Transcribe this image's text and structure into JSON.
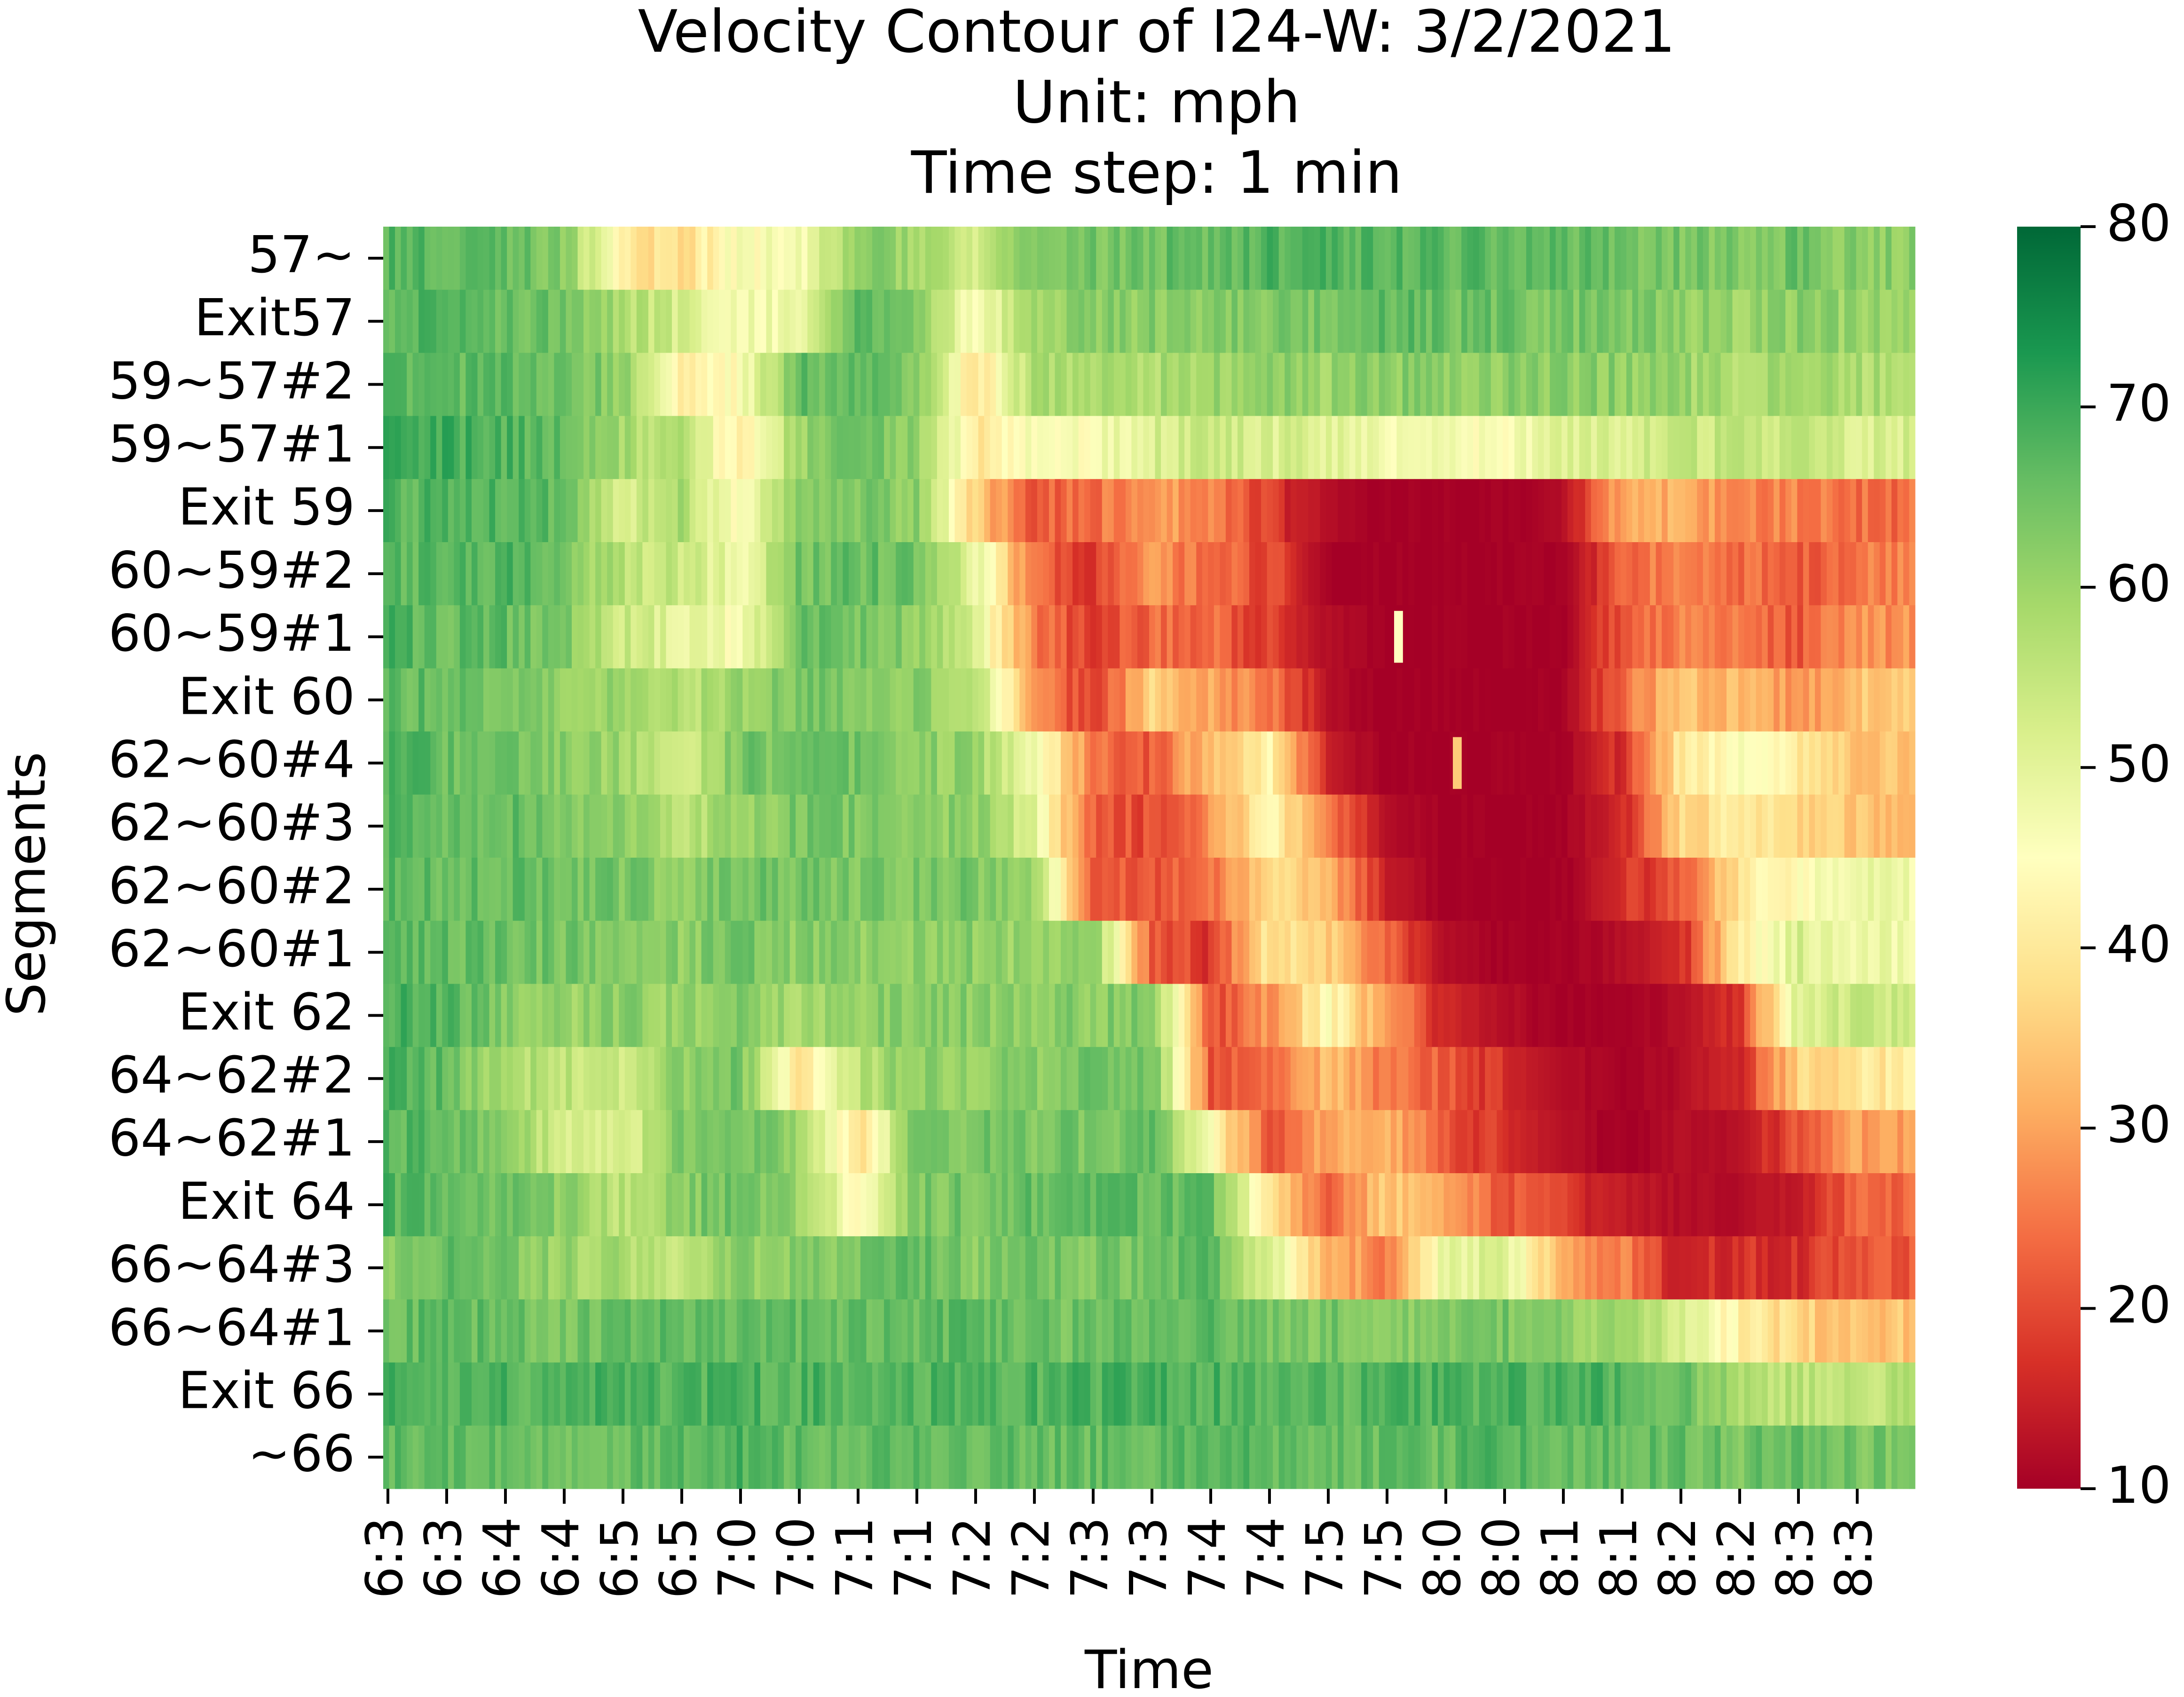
{
  "chart_data": {
    "type": "heatmap",
    "title": [
      "Velocity Contour of I24-W: 3/2/2021",
      "Unit: mph",
      "Time step: 1 min"
    ],
    "xlabel": "Time",
    "ylabel": "Segments",
    "time_step_minutes": 1,
    "x_tick_labels": [
      "6:3",
      "6:3",
      "6:4",
      "6:4",
      "6:5",
      "6:5",
      "7:0",
      "7:0",
      "7:1",
      "7:1",
      "7:2",
      "7:2",
      "7:3",
      "7:3",
      "7:4",
      "7:4",
      "7:5",
      "7:5",
      "8:0",
      "8:0",
      "8:1",
      "8:1",
      "8:2",
      "8:2",
      "8:3",
      "8:3"
    ],
    "segments": [
      "57~",
      "Exit57",
      "59~57#2",
      "59~57#1",
      "Exit 59",
      "60~59#2",
      "60~59#1",
      "Exit 60",
      "62~60#4",
      "62~60#3",
      "62~60#2",
      "62~60#1",
      "Exit 62",
      "64~62#2",
      "64~62#1",
      "Exit 64",
      "66~64#3",
      "66~64#1",
      "Exit 66",
      "~66"
    ],
    "colorbar": {
      "vmin": 10,
      "vmax": 80,
      "ticks": [
        10,
        20,
        30,
        40,
        50,
        60,
        70,
        80
      ],
      "colormap": "RdYlGn",
      "color_stops": [
        "#a50026",
        "#d73027",
        "#f46d43",
        "#fdae61",
        "#fee08b",
        "#ffffbf",
        "#d9ef8b",
        "#a6d96a",
        "#66bd63",
        "#1a9850",
        "#006837"
      ]
    },
    "approx_speed_mph_by_tick": [
      [
        68,
        67,
        66,
        63,
        40,
        38,
        46,
        46,
        62,
        60,
        52,
        62,
        64,
        65,
        66,
        68,
        68,
        67,
        67,
        67,
        66,
        65,
        64,
        63,
        65,
        62
      ],
      [
        67,
        68,
        66,
        66,
        58,
        52,
        48,
        48,
        68,
        64,
        45,
        60,
        62,
        62,
        62,
        64,
        64,
        67,
        65,
        65,
        64,
        64,
        62,
        60,
        62,
        60
      ],
      [
        67,
        67,
        66,
        65,
        62,
        40,
        45,
        66,
        66,
        62,
        38,
        58,
        58,
        58,
        60,
        62,
        60,
        62,
        62,
        62,
        62,
        62,
        60,
        58,
        60,
        58
      ],
      [
        70,
        69,
        68,
        66,
        58,
        56,
        40,
        60,
        65,
        62,
        40,
        46,
        46,
        52,
        54,
        52,
        50,
        48,
        46,
        46,
        50,
        52,
        54,
        54,
        55,
        52
      ],
      [
        68,
        67,
        68,
        66,
        52,
        58,
        44,
        64,
        64,
        62,
        35,
        22,
        24,
        30,
        26,
        18,
        12,
        10,
        10,
        10,
        12,
        30,
        32,
        26,
        26,
        24
      ],
      [
        67,
        66,
        68,
        64,
        56,
        54,
        48,
        64,
        66,
        64,
        50,
        24,
        18,
        28,
        24,
        20,
        10,
        10,
        10,
        10,
        10,
        22,
        28,
        24,
        22,
        26
      ],
      [
        68,
        66,
        66,
        64,
        54,
        50,
        46,
        66,
        64,
        62,
        50,
        26,
        18,
        24,
        24,
        18,
        12,
        10,
        10,
        10,
        10,
        22,
        26,
        24,
        22,
        28
      ],
      [
        66,
        66,
        64,
        62,
        60,
        56,
        60,
        64,
        64,
        62,
        56,
        28,
        18,
        36,
        30,
        26,
        12,
        10,
        10,
        10,
        10,
        24,
        34,
        32,
        28,
        34
      ],
      [
        68,
        66,
        64,
        62,
        60,
        52,
        64,
        64,
        64,
        62,
        60,
        48,
        26,
        22,
        34,
        42,
        14,
        10,
        10,
        10,
        10,
        18,
        40,
        46,
        40,
        34
      ],
      [
        67,
        66,
        66,
        64,
        62,
        56,
        60,
        64,
        64,
        62,
        62,
        50,
        22,
        20,
        28,
        44,
        24,
        12,
        10,
        10,
        10,
        16,
        36,
        42,
        36,
        34
      ],
      [
        68,
        66,
        66,
        64,
        64,
        62,
        66,
        64,
        64,
        64,
        64,
        60,
        22,
        22,
        24,
        38,
        32,
        14,
        10,
        10,
        10,
        16,
        22,
        40,
        44,
        48
      ],
      [
        66,
        66,
        66,
        64,
        64,
        62,
        64,
        62,
        62,
        62,
        62,
        60,
        62,
        22,
        18,
        40,
        36,
        22,
        12,
        10,
        10,
        12,
        16,
        40,
        52,
        48
      ],
      [
        68,
        68,
        62,
        60,
        62,
        60,
        64,
        58,
        62,
        62,
        62,
        62,
        62,
        64,
        20,
        28,
        44,
        28,
        16,
        12,
        10,
        10,
        12,
        18,
        52,
        54
      ],
      [
        68,
        66,
        58,
        56,
        54,
        62,
        64,
        40,
        56,
        62,
        62,
        62,
        64,
        66,
        22,
        22,
        34,
        24,
        22,
        16,
        12,
        10,
        12,
        16,
        36,
        40
      ],
      [
        68,
        66,
        62,
        52,
        50,
        64,
        66,
        60,
        38,
        64,
        64,
        64,
        64,
        66,
        44,
        22,
        30,
        32,
        22,
        16,
        12,
        10,
        12,
        12,
        22,
        30
      ],
      [
        68,
        66,
        66,
        62,
        56,
        62,
        66,
        60,
        44,
        64,
        64,
        66,
        66,
        66,
        66,
        40,
        22,
        36,
        30,
        22,
        18,
        14,
        12,
        12,
        14,
        24
      ],
      [
        62,
        66,
        64,
        60,
        58,
        56,
        62,
        62,
        64,
        66,
        62,
        64,
        64,
        64,
        66,
        52,
        32,
        26,
        50,
        52,
        30,
        26,
        14,
        18,
        16,
        22
      ],
      [
        66,
        66,
        66,
        64,
        66,
        66,
        66,
        66,
        66,
        66,
        66,
        66,
        64,
        66,
        66,
        64,
        64,
        62,
        62,
        64,
        62,
        60,
        52,
        42,
        36,
        34
      ],
      [
        68,
        68,
        68,
        68,
        68,
        68,
        68,
        68,
        68,
        68,
        68,
        68,
        68,
        68,
        68,
        68,
        66,
        68,
        68,
        68,
        68,
        68,
        66,
        58,
        56,
        56
      ],
      [
        66,
        66,
        66,
        66,
        66,
        66,
        68,
        66,
        66,
        66,
        66,
        66,
        66,
        66,
        68,
        66,
        66,
        66,
        66,
        68,
        66,
        66,
        66,
        64,
        66,
        64
      ]
    ],
    "point_anomalies": [
      {
        "segment": "60~59#1",
        "near_tick": 17,
        "speed_mph": 45
      },
      {
        "segment": "62~60#4",
        "near_tick": 18,
        "speed_mph": 35
      }
    ]
  }
}
